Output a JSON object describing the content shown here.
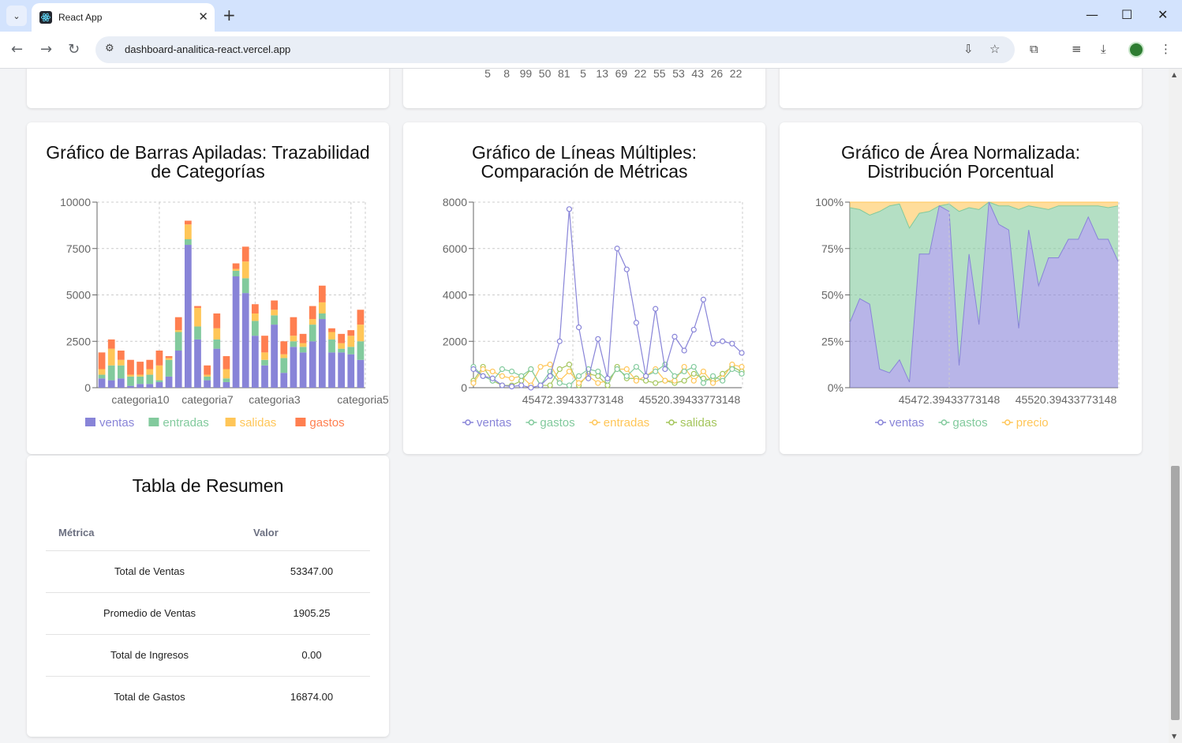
{
  "browser": {
    "tab_title": "React App",
    "url": "dashboard-analitica-react.vercel.app"
  },
  "top_partial": {
    "middle_numbers": [
      "5",
      "8",
      "99",
      "50",
      "81",
      "5",
      "13",
      "69",
      "22",
      "55",
      "53",
      "43",
      "26",
      "22"
    ]
  },
  "colors": {
    "ventas": "#8884d8",
    "entradas": "#82ca9d",
    "salidas": "#ffc658",
    "gastos": "#ff7f50"
  },
  "charts": {
    "stacked": {
      "title_line1": "Gráfico de Barras Apiladas: Trazabilidad",
      "title_line2": "de Categorías"
    },
    "lines": {
      "title_line1": "Gráfico de Líneas Múltiples:",
      "title_line2": "Comparación de Métricas"
    },
    "area": {
      "title_line1": "Gráfico de Área Normalizada:",
      "title_line2": "Distribución Porcentual"
    }
  },
  "chart_data": [
    {
      "type": "bar",
      "stacked": true,
      "ylim": [
        0,
        10000
      ],
      "yticks": [
        "0",
        "2500",
        "5000",
        "7500",
        "10000"
      ],
      "xtick_labels": [
        "categoria10",
        "categoria7",
        "categoria3",
        "categoria5"
      ],
      "grid": true,
      "legend": "bottom",
      "series": [
        {
          "name": "ventas",
          "color": "#8884d8",
          "values": [
            500,
            400,
            500,
            100,
            200,
            200,
            300,
            600,
            2000,
            7700,
            2600,
            400,
            2100,
            300,
            6000,
            5100,
            2800,
            1200,
            3400,
            800,
            2200,
            1900,
            2500,
            3700,
            1900,
            1900,
            1800,
            1500
          ]
        },
        {
          "name": "entradas",
          "color": "#82ca9d",
          "values": [
            200,
            800,
            700,
            500,
            400,
            500,
            100,
            900,
            1000,
            300,
            700,
            200,
            500,
            200,
            300,
            800,
            800,
            300,
            500,
            800,
            300,
            300,
            900,
            300,
            700,
            200,
            400,
            1000
          ]
        },
        {
          "name": "salidas",
          "color": "#ffc658",
          "values": [
            300,
            900,
            300,
            100,
            100,
            300,
            800,
            100,
            100,
            800,
            1000,
            100,
            600,
            500,
            100,
            900,
            400,
            400,
            300,
            200,
            300,
            200,
            300,
            600,
            400,
            300,
            600,
            900
          ]
        },
        {
          "name": "gastos",
          "color": "#ff7f50",
          "values": [
            900,
            500,
            500,
            800,
            700,
            500,
            800,
            100,
            700,
            200,
            100,
            500,
            800,
            700,
            300,
            800,
            500,
            900,
            500,
            700,
            1000,
            500,
            700,
            900,
            200,
            500,
            300,
            800
          ]
        }
      ]
    },
    {
      "type": "line",
      "ylim": [
        0,
        8000
      ],
      "yticks": [
        "0",
        "2000",
        "4000",
        "6000",
        "8000"
      ],
      "xtick_labels": [
        "45472.39433773148",
        "45520.39433773148"
      ],
      "grid": true,
      "legend": "bottom",
      "series": [
        {
          "name": "ventas",
          "color": "#8884d8",
          "values": [
            800,
            500,
            400,
            100,
            50,
            100,
            0,
            100,
            500,
            2000,
            7700,
            2600,
            400,
            2100,
            400,
            6000,
            5100,
            2800,
            500,
            3400,
            800,
            2200,
            1600,
            2500,
            3800,
            1900,
            2000,
            1900,
            1500
          ]
        },
        {
          "name": "gastos",
          "color": "#82ca9d",
          "values": [
            900,
            500,
            300,
            800,
            700,
            500,
            800,
            100,
            700,
            200,
            100,
            500,
            800,
            700,
            300,
            800,
            500,
            900,
            500,
            700,
            1000,
            500,
            700,
            900,
            200,
            500,
            300,
            800,
            600
          ]
        },
        {
          "name": "entradas",
          "color": "#ffc658",
          "values": [
            200,
            800,
            700,
            500,
            400,
            500,
            100,
            900,
            1000,
            300,
            700,
            200,
            500,
            200,
            300,
            800,
            800,
            300,
            500,
            800,
            300,
            300,
            900,
            300,
            700,
            200,
            400,
            1000,
            900
          ]
        },
        {
          "name": "salidas",
          "color": "#a4c55b",
          "values": [
            300,
            900,
            300,
            100,
            100,
            300,
            800,
            100,
            100,
            800,
            1000,
            100,
            600,
            500,
            100,
            900,
            400,
            400,
            300,
            200,
            300,
            200,
            300,
            600,
            400,
            300,
            600,
            900,
            700
          ]
        }
      ]
    },
    {
      "type": "area",
      "normalized": true,
      "ylim": [
        0,
        100
      ],
      "yticks": [
        "0%",
        "25%",
        "50%",
        "75%",
        "100%"
      ],
      "xtick_labels": [
        "45472.39433773148",
        "45520.39433773148"
      ],
      "grid": true,
      "legend": "bottom",
      "series": [
        {
          "name": "ventas",
          "color": "#8884d8",
          "values": [
            35,
            48,
            45,
            10,
            8,
            15,
            3,
            72,
            72,
            98,
            95,
            12,
            72,
            34,
            100,
            88,
            85,
            32,
            85,
            55,
            70,
            70,
            80,
            80,
            92,
            80,
            80,
            68
          ]
        },
        {
          "name": "gastos",
          "color": "#82ca9d",
          "values": [
            62,
            48,
            48,
            85,
            90,
            84,
            83,
            22,
            23,
            0,
            4,
            83,
            25,
            62,
            0,
            10,
            13,
            64,
            13,
            42,
            26,
            28,
            18,
            18,
            6,
            18,
            17,
            30
          ]
        },
        {
          "name": "precio",
          "color": "#ffc658",
          "values": [
            3,
            4,
            7,
            5,
            2,
            1,
            14,
            6,
            5,
            2,
            1,
            5,
            3,
            4,
            0,
            2,
            2,
            4,
            2,
            3,
            4,
            2,
            2,
            2,
            2,
            2,
            3,
            2
          ]
        }
      ]
    }
  ],
  "table": {
    "title": "Tabla de Resumen",
    "headers": [
      "Métrica",
      "Valor"
    ],
    "rows": [
      {
        "metric": "Total de Ventas",
        "value": "53347.00"
      },
      {
        "metric": "Promedio de Ventas",
        "value": "1905.25"
      },
      {
        "metric": "Total de Ingresos",
        "value": "0.00"
      },
      {
        "metric": "Total de Gastos",
        "value": "16874.00"
      }
    ]
  }
}
